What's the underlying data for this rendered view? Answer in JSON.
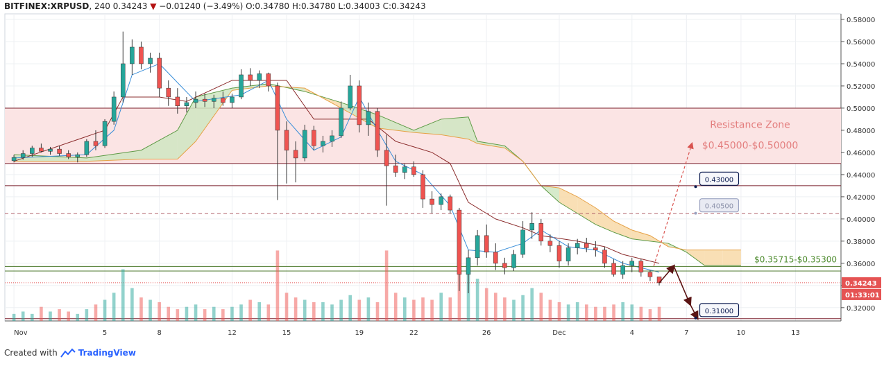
{
  "header": {
    "symbol": "BITFINEX:XRPUSD",
    "interval": "240",
    "last": "0.34243",
    "change": "−0.01240 (−3.49%)",
    "o_label": "O:",
    "o": "0.34780",
    "h_label": "H:",
    "h": "0.34780",
    "l_label": "L:",
    "l": "0.34003",
    "c_label": "C:",
    "c": "0.34243",
    "down_arrow": "▼"
  },
  "footer": {
    "created_with": "Created with",
    "brand": "TradingView",
    "logo_icon": "tradingview-logo-icon"
  },
  "colors": {
    "bull": "#26a69a",
    "bear": "#ef5350",
    "zone_fill": "#fbe4e4",
    "zone_line": "#7a1f2b",
    "support_line": "#4c7a2c",
    "cloud_bear": "#f8d9a8",
    "cloud_bull": "#cfe6c2",
    "tenkan": "#3a8fd9",
    "kijun": "#8b2c2c",
    "arrow_dark": "#5a1414",
    "arrow_proj": "#d9534f",
    "price_tag": "#e55353",
    "label_box": "#0a1a4f"
  },
  "chart_data": {
    "type": "candlestick",
    "y_axis": {
      "ylim": [
        0.308,
        0.585
      ],
      "ticks": [
        "0.58000",
        "0.56000",
        "0.54000",
        "0.52000",
        "0.50000",
        "0.48000",
        "0.46000",
        "0.44000",
        "0.42000",
        "0.40000",
        "0.38000",
        "0.36000",
        "0.34000",
        "0.32000"
      ],
      "position": "right",
      "current_price_tag": "0.34243",
      "countdown_tag": "01:33:01"
    },
    "x_axis": {
      "tick_labels": [
        "Nov",
        "5",
        "8",
        "12",
        "15",
        "19",
        "22",
        "26",
        "Dec",
        "4",
        "7",
        "10",
        "13"
      ],
      "tick_times": [
        0,
        5,
        8,
        12,
        15,
        19,
        22,
        26,
        30,
        34,
        37,
        40,
        43
      ]
    },
    "grid": true,
    "resistance_zone": {
      "label": "Resistance Zone",
      "range_label": "$0.45000-$0.50000",
      "low": 0.45,
      "high": 0.5
    },
    "support_zone": {
      "label": "$0.35715-$0.35300",
      "high": 0.35715,
      "low": 0.353
    },
    "levels": [
      {
        "name": "level-043",
        "value": 0.43,
        "label": "0.43000",
        "style": "solid"
      },
      {
        "name": "level-0405",
        "value": 0.405,
        "label": "0.40500",
        "style": "dashed"
      },
      {
        "name": "level-031",
        "value": 0.31,
        "label": "0.31000",
        "style": "solid"
      }
    ],
    "candles": [
      {
        "t": 0.0,
        "o": 0.4525,
        "h": 0.4578,
        "l": 0.451,
        "c": 0.4555
      },
      {
        "t": 0.5,
        "o": 0.4555,
        "h": 0.462,
        "l": 0.4535,
        "c": 0.459
      },
      {
        "t": 1.0,
        "o": 0.459,
        "h": 0.466,
        "l": 0.456,
        "c": 0.464
      },
      {
        "t": 1.5,
        "o": 0.464,
        "h": 0.468,
        "l": 0.46,
        "c": 0.461
      },
      {
        "t": 2.0,
        "o": 0.461,
        "h": 0.465,
        "l": 0.458,
        "c": 0.463
      },
      {
        "t": 2.5,
        "o": 0.463,
        "h": 0.466,
        "l": 0.457,
        "c": 0.459
      },
      {
        "t": 3.0,
        "o": 0.459,
        "h": 0.462,
        "l": 0.454,
        "c": 0.456
      },
      {
        "t": 3.5,
        "o": 0.456,
        "h": 0.46,
        "l": 0.451,
        "c": 0.458
      },
      {
        "t": 4.0,
        "o": 0.458,
        "h": 0.472,
        "l": 0.456,
        "c": 0.47
      },
      {
        "t": 4.5,
        "o": 0.47,
        "h": 0.48,
        "l": 0.462,
        "c": 0.466
      },
      {
        "t": 5.0,
        "o": 0.466,
        "h": 0.49,
        "l": 0.464,
        "c": 0.488
      },
      {
        "t": 5.5,
        "o": 0.488,
        "h": 0.515,
        "l": 0.485,
        "c": 0.51
      },
      {
        "t": 6.0,
        "o": 0.51,
        "h": 0.569,
        "l": 0.505,
        "c": 0.54
      },
      {
        "t": 6.5,
        "o": 0.54,
        "h": 0.562,
        "l": 0.53,
        "c": 0.555
      },
      {
        "t": 7.0,
        "o": 0.555,
        "h": 0.56,
        "l": 0.535,
        "c": 0.54
      },
      {
        "t": 7.5,
        "o": 0.54,
        "h": 0.55,
        "l": 0.532,
        "c": 0.545
      },
      {
        "t": 8.0,
        "o": 0.545,
        "h": 0.55,
        "l": 0.51,
        "c": 0.518
      },
      {
        "t": 8.5,
        "o": 0.518,
        "h": 0.525,
        "l": 0.502,
        "c": 0.51
      },
      {
        "t": 9.0,
        "o": 0.51,
        "h": 0.518,
        "l": 0.495,
        "c": 0.502
      },
      {
        "t": 9.5,
        "o": 0.502,
        "h": 0.51,
        "l": 0.496,
        "c": 0.505
      },
      {
        "t": 10.0,
        "o": 0.505,
        "h": 0.515,
        "l": 0.5,
        "c": 0.508
      },
      {
        "t": 10.5,
        "o": 0.508,
        "h": 0.513,
        "l": 0.501,
        "c": 0.506
      },
      {
        "t": 11.0,
        "o": 0.506,
        "h": 0.512,
        "l": 0.5,
        "c": 0.509
      },
      {
        "t": 11.5,
        "o": 0.509,
        "h": 0.515,
        "l": 0.502,
        "c": 0.505
      },
      {
        "t": 12.0,
        "o": 0.505,
        "h": 0.513,
        "l": 0.5,
        "c": 0.51
      },
      {
        "t": 12.5,
        "o": 0.51,
        "h": 0.535,
        "l": 0.508,
        "c": 0.53
      },
      {
        "t": 13.0,
        "o": 0.53,
        "h": 0.536,
        "l": 0.52,
        "c": 0.525
      },
      {
        "t": 13.5,
        "o": 0.525,
        "h": 0.534,
        "l": 0.518,
        "c": 0.531
      },
      {
        "t": 14.0,
        "o": 0.531,
        "h": 0.532,
        "l": 0.515,
        "c": 0.52
      },
      {
        "t": 14.5,
        "o": 0.52,
        "h": 0.523,
        "l": 0.417,
        "c": 0.48
      },
      {
        "t": 15.0,
        "o": 0.48,
        "h": 0.488,
        "l": 0.432,
        "c": 0.462
      },
      {
        "t": 15.5,
        "o": 0.462,
        "h": 0.47,
        "l": 0.433,
        "c": 0.455
      },
      {
        "t": 16.0,
        "o": 0.455,
        "h": 0.485,
        "l": 0.452,
        "c": 0.48
      },
      {
        "t": 16.5,
        "o": 0.48,
        "h": 0.484,
        "l": 0.462,
        "c": 0.466
      },
      {
        "t": 17.0,
        "o": 0.466,
        "h": 0.475,
        "l": 0.46,
        "c": 0.47
      },
      {
        "t": 17.5,
        "o": 0.47,
        "h": 0.48,
        "l": 0.465,
        "c": 0.475
      },
      {
        "t": 18.0,
        "o": 0.475,
        "h": 0.506,
        "l": 0.473,
        "c": 0.5
      },
      {
        "t": 18.5,
        "o": 0.5,
        "h": 0.53,
        "l": 0.498,
        "c": 0.52
      },
      {
        "t": 19.0,
        "o": 0.52,
        "h": 0.525,
        "l": 0.478,
        "c": 0.485
      },
      {
        "t": 19.5,
        "o": 0.485,
        "h": 0.505,
        "l": 0.475,
        "c": 0.497
      },
      {
        "t": 20.0,
        "o": 0.497,
        "h": 0.5,
        "l": 0.456,
        "c": 0.462
      },
      {
        "t": 20.5,
        "o": 0.462,
        "h": 0.476,
        "l": 0.412,
        "c": 0.448
      },
      {
        "t": 21.0,
        "o": 0.448,
        "h": 0.458,
        "l": 0.438,
        "c": 0.442
      },
      {
        "t": 21.5,
        "o": 0.442,
        "h": 0.45,
        "l": 0.436,
        "c": 0.447
      },
      {
        "t": 22.0,
        "o": 0.447,
        "h": 0.452,
        "l": 0.438,
        "c": 0.44
      },
      {
        "t": 22.5,
        "o": 0.44,
        "h": 0.444,
        "l": 0.41,
        "c": 0.418
      },
      {
        "t": 23.0,
        "o": 0.418,
        "h": 0.425,
        "l": 0.405,
        "c": 0.413
      },
      {
        "t": 23.5,
        "o": 0.413,
        "h": 0.423,
        "l": 0.408,
        "c": 0.42
      },
      {
        "t": 24.0,
        "o": 0.42,
        "h": 0.422,
        "l": 0.405,
        "c": 0.408
      },
      {
        "t": 24.5,
        "o": 0.408,
        "h": 0.41,
        "l": 0.335,
        "c": 0.35
      },
      {
        "t": 25.0,
        "o": 0.35,
        "h": 0.372,
        "l": 0.333,
        "c": 0.365
      },
      {
        "t": 25.5,
        "o": 0.365,
        "h": 0.39,
        "l": 0.358,
        "c": 0.385
      },
      {
        "t": 26.0,
        "o": 0.385,
        "h": 0.395,
        "l": 0.365,
        "c": 0.37
      },
      {
        "t": 26.5,
        "o": 0.37,
        "h": 0.378,
        "l": 0.354,
        "c": 0.36
      },
      {
        "t": 27.0,
        "o": 0.36,
        "h": 0.365,
        "l": 0.35,
        "c": 0.356
      },
      {
        "t": 27.5,
        "o": 0.356,
        "h": 0.372,
        "l": 0.353,
        "c": 0.368
      },
      {
        "t": 28.0,
        "o": 0.368,
        "h": 0.398,
        "l": 0.365,
        "c": 0.39
      },
      {
        "t": 28.5,
        "o": 0.39,
        "h": 0.406,
        "l": 0.382,
        "c": 0.396
      },
      {
        "t": 29.0,
        "o": 0.396,
        "h": 0.4,
        "l": 0.376,
        "c": 0.38
      },
      {
        "t": 29.5,
        "o": 0.38,
        "h": 0.386,
        "l": 0.37,
        "c": 0.376
      },
      {
        "t": 30.0,
        "o": 0.376,
        "h": 0.38,
        "l": 0.356,
        "c": 0.362
      },
      {
        "t": 30.5,
        "o": 0.362,
        "h": 0.378,
        "l": 0.358,
        "c": 0.374
      },
      {
        "t": 31.0,
        "o": 0.374,
        "h": 0.382,
        "l": 0.368,
        "c": 0.378
      },
      {
        "t": 31.5,
        "o": 0.378,
        "h": 0.383,
        "l": 0.37,
        "c": 0.374
      },
      {
        "t": 32.0,
        "o": 0.374,
        "h": 0.38,
        "l": 0.366,
        "c": 0.372
      },
      {
        "t": 32.5,
        "o": 0.372,
        "h": 0.375,
        "l": 0.356,
        "c": 0.36
      },
      {
        "t": 33.0,
        "o": 0.36,
        "h": 0.364,
        "l": 0.348,
        "c": 0.35
      },
      {
        "t": 33.5,
        "o": 0.35,
        "h": 0.362,
        "l": 0.346,
        "c": 0.358
      },
      {
        "t": 34.0,
        "o": 0.358,
        "h": 0.365,
        "l": 0.352,
        "c": 0.362
      },
      {
        "t": 34.5,
        "o": 0.362,
        "h": 0.364,
        "l": 0.348,
        "c": 0.352
      },
      {
        "t": 35.0,
        "o": 0.352,
        "h": 0.354,
        "l": 0.344,
        "c": 0.3478
      },
      {
        "t": 35.5,
        "o": 0.3478,
        "h": 0.3478,
        "l": 0.34,
        "c": 0.3424
      }
    ],
    "tenkan": [
      [
        0,
        0.455
      ],
      [
        4,
        0.458
      ],
      [
        5.5,
        0.48
      ],
      [
        6.5,
        0.53
      ],
      [
        8,
        0.54
      ],
      [
        10,
        0.506
      ],
      [
        12.5,
        0.512
      ],
      [
        14,
        0.525
      ],
      [
        15,
        0.49
      ],
      [
        16.5,
        0.462
      ],
      [
        18,
        0.474
      ],
      [
        19,
        0.51
      ],
      [
        20,
        0.48
      ],
      [
        21,
        0.452
      ],
      [
        22.5,
        0.44
      ],
      [
        24,
        0.412
      ],
      [
        25,
        0.372
      ],
      [
        26.5,
        0.37
      ],
      [
        28,
        0.378
      ],
      [
        29,
        0.39
      ],
      [
        30.5,
        0.375
      ],
      [
        32,
        0.372
      ],
      [
        33.5,
        0.36
      ],
      [
        35.5,
        0.352
      ]
    ],
    "kijun": [
      [
        0,
        0.452
      ],
      [
        5,
        0.48
      ],
      [
        6,
        0.51
      ],
      [
        8,
        0.51
      ],
      [
        9.5,
        0.506
      ],
      [
        12,
        0.525
      ],
      [
        14,
        0.525
      ],
      [
        15,
        0.525
      ],
      [
        16.5,
        0.49
      ],
      [
        18.5,
        0.49
      ],
      [
        19.5,
        0.49
      ],
      [
        21,
        0.47
      ],
      [
        22,
        0.465
      ],
      [
        23,
        0.46
      ],
      [
        24,
        0.45
      ],
      [
        25,
        0.415
      ],
      [
        26.5,
        0.4
      ],
      [
        28,
        0.392
      ],
      [
        29,
        0.385
      ],
      [
        31,
        0.38
      ],
      [
        32.5,
        0.375
      ],
      [
        33.5,
        0.368
      ],
      [
        35.5,
        0.36
      ]
    ],
    "cloud_span_a": [
      [
        0,
        0.458
      ],
      [
        4,
        0.455
      ],
      [
        7,
        0.462
      ],
      [
        9,
        0.48
      ],
      [
        10,
        0.51
      ],
      [
        12,
        0.518
      ],
      [
        14,
        0.522
      ],
      [
        16,
        0.515
      ],
      [
        18,
        0.505
      ],
      [
        20,
        0.494
      ],
      [
        22,
        0.48
      ],
      [
        23.5,
        0.49
      ],
      [
        25,
        0.492
      ],
      [
        25.5,
        0.47
      ],
      [
        27,
        0.466
      ],
      [
        28,
        0.452
      ],
      [
        29,
        0.43
      ],
      [
        30,
        0.415
      ],
      [
        31,
        0.405
      ],
      [
        32,
        0.395
      ],
      [
        33,
        0.388
      ],
      [
        34,
        0.382
      ],
      [
        35,
        0.38
      ],
      [
        36,
        0.378
      ],
      [
        37,
        0.37
      ],
      [
        38,
        0.358
      ],
      [
        39,
        0.358
      ],
      [
        40,
        0.358
      ]
    ],
    "cloud_span_b": [
      [
        0,
        0.452
      ],
      [
        4,
        0.452
      ],
      [
        7,
        0.454
      ],
      [
        9,
        0.454
      ],
      [
        10,
        0.47
      ],
      [
        12,
        0.516
      ],
      [
        14,
        0.52
      ],
      [
        16,
        0.518
      ],
      [
        18,
        0.5
      ],
      [
        20,
        0.482
      ],
      [
        22,
        0.478
      ],
      [
        23.5,
        0.476
      ],
      [
        25,
        0.472
      ],
      [
        25.5,
        0.468
      ],
      [
        27,
        0.464
      ],
      [
        28,
        0.452
      ],
      [
        29,
        0.43
      ],
      [
        30,
        0.428
      ],
      [
        31,
        0.42
      ],
      [
        32,
        0.41
      ],
      [
        33,
        0.398
      ],
      [
        34,
        0.39
      ],
      [
        35,
        0.385
      ],
      [
        36,
        0.375
      ],
      [
        37,
        0.372
      ],
      [
        38,
        0.372
      ],
      [
        39,
        0.372
      ],
      [
        40,
        0.372
      ]
    ],
    "volume": [
      3,
      4,
      3,
      6,
      4,
      5,
      4,
      3,
      5,
      7,
      9,
      12,
      22,
      14,
      10,
      9,
      8,
      6,
      5,
      6,
      7,
      5,
      6,
      5,
      6,
      7,
      9,
      8,
      7,
      30,
      12,
      10,
      9,
      8,
      8,
      7,
      9,
      11,
      9,
      10,
      8,
      30,
      12,
      10,
      9,
      10,
      9,
      12,
      10,
      31,
      26,
      18,
      14,
      12,
      10,
      9,
      11,
      14,
      12,
      9,
      8,
      7,
      8,
      7,
      6,
      6,
      7,
      8,
      7,
      6,
      5,
      6
    ],
    "projection_up": {
      "from": [
        35.2,
        0.3575
      ],
      "to": [
        37.3,
        0.468
      ]
    },
    "projection_down": [
      [
        35.5,
        0.3424
      ],
      [
        36.3,
        0.3575
      ],
      [
        37.2,
        0.323
      ],
      [
        37.6,
        0.3105
      ]
    ]
  }
}
